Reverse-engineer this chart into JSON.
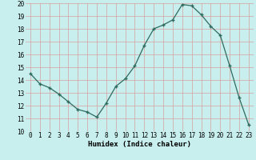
{
  "x": [
    0,
    1,
    2,
    3,
    4,
    5,
    6,
    7,
    8,
    9,
    10,
    11,
    12,
    13,
    14,
    15,
    16,
    17,
    18,
    19,
    20,
    21,
    22,
    23
  ],
  "y": [
    14.5,
    13.7,
    13.4,
    12.9,
    12.3,
    11.7,
    11.5,
    11.1,
    12.2,
    13.5,
    14.1,
    15.1,
    16.7,
    18.0,
    18.3,
    18.7,
    19.9,
    19.8,
    19.1,
    18.2,
    17.5,
    15.1,
    12.6,
    10.5
  ],
  "xlabel": "Humidex (Indice chaleur)",
  "ylim": [
    10,
    20
  ],
  "xlim_min": -0.5,
  "xlim_max": 23.5,
  "yticks": [
    10,
    11,
    12,
    13,
    14,
    15,
    16,
    17,
    18,
    19,
    20
  ],
  "xticks": [
    0,
    1,
    2,
    3,
    4,
    5,
    6,
    7,
    8,
    9,
    10,
    11,
    12,
    13,
    14,
    15,
    16,
    17,
    18,
    19,
    20,
    21,
    22,
    23
  ],
  "xtick_labels": [
    "0",
    "1",
    "2",
    "3",
    "4",
    "5",
    "6",
    "7",
    "8",
    "9",
    "10",
    "11",
    "12",
    "13",
    "14",
    "15",
    "16",
    "17",
    "18",
    "19",
    "20",
    "21",
    "22",
    "23"
  ],
  "line_color": "#2d6b5e",
  "marker_color": "#2d6b5e",
  "bg_color": "#c8eeee",
  "grid_color": "#d8a0a0",
  "xlabel_fontsize": 6.5,
  "tick_fontsize": 5.5,
  "title_fontsize": 6.0
}
